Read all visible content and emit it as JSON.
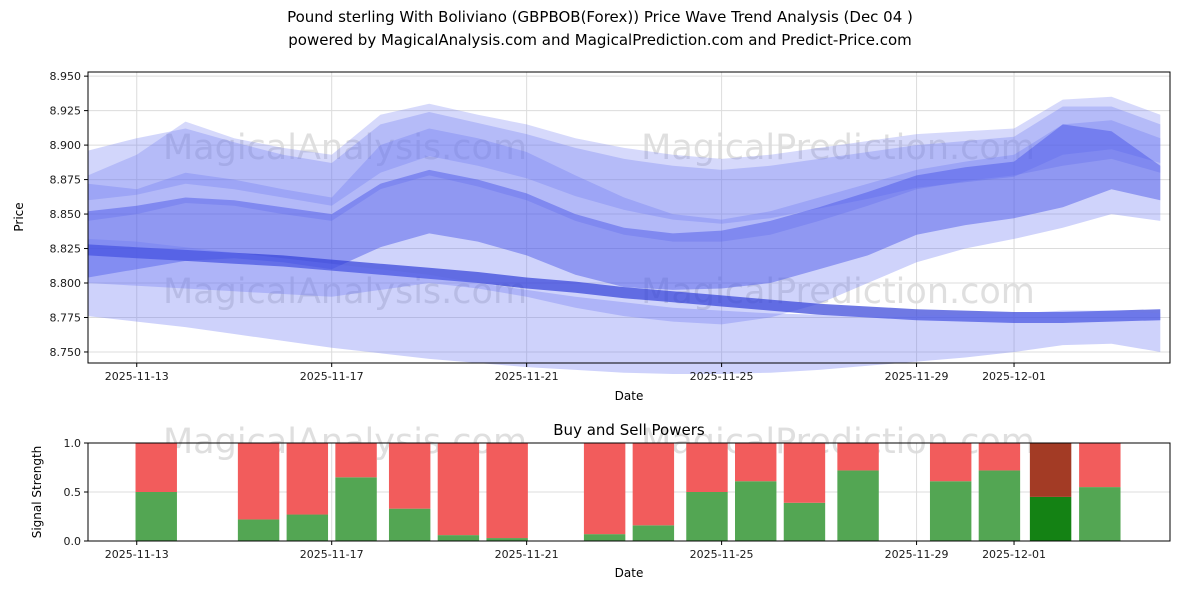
{
  "watermarks": {
    "left": "MagicalAnalysis.com",
    "right": "MagicalPrediction.com"
  },
  "style": {
    "grid_color": "#dcdcdc",
    "spine_color": "#000000",
    "tick_label_color": "#1a1a1a"
  },
  "chart_data": [
    {
      "type": "area",
      "title": "Pound sterling With Boliviano (GBPBOB(Forex)) Price Wave Trend Analysis (Dec 04 )",
      "subtitle": "powered by MagicalAnalysis.com and MagicalPrediction.com and Predict-Price.com",
      "xlabel": "Date",
      "ylabel": "Price",
      "grid": true,
      "xlim": [
        0,
        22.2
      ],
      "ylim": [
        8.742,
        8.953
      ],
      "yticks": [
        8.75,
        8.775,
        8.8,
        8.825,
        8.85,
        8.875,
        8.9,
        8.925,
        8.95
      ],
      "xticks": [
        {
          "day": 1,
          "label": "2025-11-13"
        },
        {
          "day": 5,
          "label": "2025-11-17"
        },
        {
          "day": 9,
          "label": "2025-11-21"
        },
        {
          "day": 13,
          "label": "2025-11-25"
        },
        {
          "day": 17,
          "label": "2025-11-29"
        },
        {
          "day": 19,
          "label": "2025-12-01"
        }
      ],
      "x": [
        0,
        1,
        2,
        3,
        4,
        5,
        6,
        7,
        8,
        9,
        10,
        11,
        12,
        13,
        14,
        15,
        16,
        17,
        18,
        19,
        20,
        21,
        22
      ],
      "bands": [
        {
          "name": "outer-top-band",
          "color": "#6b77f2",
          "opacity": 0.28,
          "upper": [
            8.878,
            8.893,
            8.917,
            8.905,
            8.898,
            8.893,
            8.922,
            8.93,
            8.922,
            8.915,
            8.905,
            8.898,
            8.893,
            8.89,
            8.893,
            8.898,
            8.903,
            8.908,
            8.91,
            8.912,
            8.933,
            8.935,
            8.922
          ],
          "lower": [
            8.845,
            8.85,
            8.858,
            8.856,
            8.85,
            8.845,
            8.868,
            8.878,
            8.87,
            8.86,
            8.845,
            8.835,
            8.83,
            8.83,
            8.835,
            8.845,
            8.856,
            8.868,
            8.874,
            8.878,
            8.885,
            8.89,
            8.88
          ]
        },
        {
          "name": "upper-mid-band",
          "color": "#6b77f2",
          "opacity": 0.3,
          "upper": [
            8.896,
            8.905,
            8.912,
            8.902,
            8.893,
            8.887,
            8.915,
            8.924,
            8.916,
            8.908,
            8.898,
            8.89,
            8.885,
            8.882,
            8.885,
            8.89,
            8.895,
            8.9,
            8.903,
            8.906,
            8.928,
            8.928,
            8.915
          ],
          "lower": [
            8.86,
            8.864,
            8.872,
            8.868,
            8.862,
            8.856,
            8.88,
            8.892,
            8.885,
            8.876,
            8.863,
            8.853,
            8.846,
            8.843,
            8.847,
            8.854,
            8.861,
            8.869,
            8.873,
            8.877,
            8.893,
            8.897,
            8.887
          ]
        },
        {
          "name": "wide-mid-band",
          "color": "#6b77f2",
          "opacity": 0.32,
          "upper": [
            8.872,
            8.868,
            8.88,
            8.875,
            8.868,
            8.862,
            8.9,
            8.912,
            8.905,
            8.895,
            8.878,
            8.862,
            8.85,
            8.846,
            8.852,
            8.862,
            8.872,
            8.882,
            8.888,
            8.893,
            8.915,
            8.918,
            8.905
          ],
          "lower": [
            8.8,
            8.798,
            8.796,
            8.794,
            8.792,
            8.79,
            8.795,
            8.8,
            8.796,
            8.79,
            8.782,
            8.776,
            8.772,
            8.77,
            8.775,
            8.785,
            8.8,
            8.815,
            8.825,
            8.832,
            8.84,
            8.85,
            8.845
          ]
        },
        {
          "name": "core-dark-band",
          "color": "#4350e6",
          "opacity": 0.45,
          "upper": [
            8.852,
            8.856,
            8.862,
            8.86,
            8.855,
            8.85,
            8.872,
            8.882,
            8.875,
            8.865,
            8.85,
            8.84,
            8.836,
            8.838,
            8.845,
            8.855,
            8.866,
            8.878,
            8.884,
            8.888,
            8.915,
            8.91,
            8.885
          ],
          "lower": [
            8.804,
            8.81,
            8.816,
            8.818,
            8.815,
            8.81,
            8.826,
            8.836,
            8.83,
            8.82,
            8.806,
            8.797,
            8.795,
            8.796,
            8.8,
            8.81,
            8.82,
            8.835,
            8.842,
            8.847,
            8.855,
            8.868,
            8.86
          ]
        },
        {
          "name": "trend-line-band",
          "color": "#3240d8",
          "opacity": 0.7,
          "upper": [
            8.828,
            8.826,
            8.824,
            8.822,
            8.82,
            8.817,
            8.814,
            8.811,
            8.808,
            8.804,
            8.801,
            8.797,
            8.794,
            8.791,
            8.788,
            8.785,
            8.783,
            8.781,
            8.78,
            8.779,
            8.779,
            8.78,
            8.781
          ],
          "lower": [
            8.82,
            8.818,
            8.816,
            8.814,
            8.812,
            8.809,
            8.806,
            8.803,
            8.8,
            8.796,
            8.793,
            8.789,
            8.786,
            8.783,
            8.78,
            8.777,
            8.775,
            8.773,
            8.772,
            8.771,
            8.771,
            8.772,
            8.773
          ]
        },
        {
          "name": "lower-band",
          "color": "#6b77f2",
          "opacity": 0.33,
          "upper": [
            8.832,
            8.83,
            8.826,
            8.822,
            8.818,
            8.814,
            8.81,
            8.806,
            8.8,
            8.795,
            8.79,
            8.786,
            8.782,
            8.78,
            8.778,
            8.777,
            8.776,
            8.776,
            8.777,
            8.778,
            8.78,
            8.78,
            8.778
          ],
          "lower": [
            8.776,
            8.772,
            8.768,
            8.763,
            8.758,
            8.753,
            8.749,
            8.745,
            8.742,
            8.739,
            8.737,
            8.735,
            8.734,
            8.734,
            8.735,
            8.737,
            8.74,
            8.743,
            8.746,
            8.75,
            8.755,
            8.756,
            8.75
          ]
        }
      ]
    },
    {
      "type": "bar",
      "title": "Buy and Sell Powers",
      "xlabel": "Date",
      "ylabel": "Signal Strength",
      "grid": true,
      "stacked": true,
      "xlim": [
        0,
        22.2
      ],
      "ylim": [
        0,
        1.0
      ],
      "yticks": [
        0.0,
        0.5,
        1.0
      ],
      "xticks": [
        {
          "day": 1,
          "label": "2025-11-13"
        },
        {
          "day": 5,
          "label": "2025-11-17"
        },
        {
          "day": 9,
          "label": "2025-11-21"
        },
        {
          "day": 13,
          "label": "2025-11-25"
        },
        {
          "day": 17,
          "label": "2025-11-29"
        },
        {
          "day": 19,
          "label": "2025-12-01"
        }
      ],
      "bar_width_days": 0.85,
      "colors": {
        "buy": "#53a653",
        "sell": "#f25c5c",
        "buy_current": "#148214",
        "sell_current": "#a33b25"
      },
      "bars": [
        {
          "day": 1.4,
          "buy": 0.5,
          "sell": 0.5,
          "current": false
        },
        {
          "day": 3.5,
          "buy": 0.22,
          "sell": 0.78,
          "current": false
        },
        {
          "day": 4.5,
          "buy": 0.27,
          "sell": 0.73,
          "current": false
        },
        {
          "day": 5.5,
          "buy": 0.65,
          "sell": 0.35,
          "current": false
        },
        {
          "day": 6.6,
          "buy": 0.33,
          "sell": 0.67,
          "current": false
        },
        {
          "day": 7.6,
          "buy": 0.06,
          "sell": 0.94,
          "current": false
        },
        {
          "day": 8.6,
          "buy": 0.03,
          "sell": 0.97,
          "current": false
        },
        {
          "day": 10.6,
          "buy": 0.07,
          "sell": 0.93,
          "current": false
        },
        {
          "day": 11.6,
          "buy": 0.16,
          "sell": 0.84,
          "current": false
        },
        {
          "day": 12.7,
          "buy": 0.5,
          "sell": 0.5,
          "current": false
        },
        {
          "day": 13.7,
          "buy": 0.61,
          "sell": 0.39,
          "current": false
        },
        {
          "day": 14.7,
          "buy": 0.39,
          "sell": 0.61,
          "current": false
        },
        {
          "day": 15.8,
          "buy": 0.72,
          "sell": 0.28,
          "current": false
        },
        {
          "day": 17.7,
          "buy": 0.61,
          "sell": 0.39,
          "current": false
        },
        {
          "day": 18.7,
          "buy": 0.72,
          "sell": 0.28,
          "current": false
        },
        {
          "day": 19.75,
          "buy": 0.45,
          "sell": 0.55,
          "current": true
        },
        {
          "day": 20.76,
          "buy": 0.55,
          "sell": 0.45,
          "current": false
        }
      ]
    }
  ]
}
